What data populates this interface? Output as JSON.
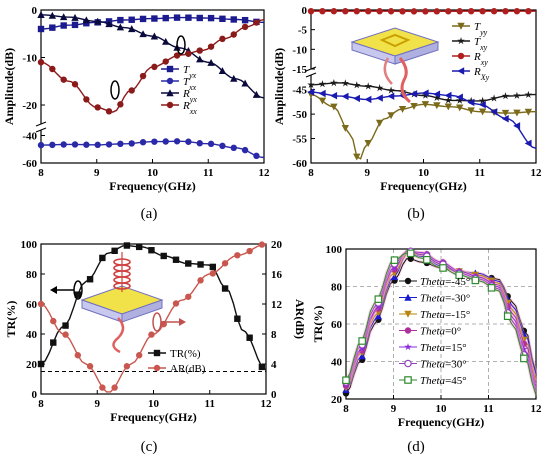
{
  "chart_data": [
    {
      "id": "a",
      "type": "line",
      "caption": "(a)",
      "xlabel": "Frequency(GHz)",
      "ylabel": "Amplitude(dB)",
      "xlim": [
        8,
        12
      ],
      "xticks": [
        "8",
        "9",
        "10",
        "11",
        "12"
      ],
      "yticks": [
        "0",
        "-10",
        "-20",
        "-40",
        "-60"
      ],
      "ylim_upper": [
        -24,
        0
      ],
      "ylim_lower": [
        -60,
        -36
      ],
      "axis_break": true,
      "series": [
        {
          "name": "Tyx",
          "name_base": "T",
          "name_sub": "yx",
          "color": "#1b1b8f",
          "marker": "square",
          "x": [
            8,
            8.5,
            9,
            9.5,
            10,
            10.5,
            11,
            11.5,
            12
          ],
          "y": [
            -4,
            -3.2,
            -2.6,
            -2.1,
            -1.8,
            -1.6,
            -1.7,
            -2,
            -2.6
          ]
        },
        {
          "name": "Txx",
          "name_base": "T",
          "name_sub": "xx",
          "color": "#2a2aa8",
          "marker": "circle",
          "x": [
            8,
            8.5,
            9,
            9.5,
            10,
            10.5,
            11,
            11.5,
            12
          ],
          "y": [
            -47,
            -46.5,
            -46.8,
            -46,
            -44.5,
            -44.2,
            -46,
            -49,
            -56
          ]
        },
        {
          "name": "Ryx",
          "name_base": "R",
          "name_sub": "yx",
          "color": "#0a0a3c",
          "marker": "triangle",
          "x": [
            8,
            8.5,
            9,
            9.5,
            10,
            10.5,
            11,
            11.5,
            12
          ],
          "y": [
            -1,
            -1.5,
            -2.4,
            -3.7,
            -5.5,
            -8,
            -11,
            -14.5,
            -18.5
          ]
        },
        {
          "name": "Rxx",
          "name_base": "R",
          "name_sub": "xx",
          "color": "#8b1a1a",
          "marker": "circle",
          "x": [
            8,
            8.5,
            9,
            9.3,
            9.6,
            10,
            10.5,
            10.9,
            11.3,
            11.7,
            12
          ],
          "y": [
            -11,
            -15,
            -20.5,
            -21.5,
            -17,
            -12,
            -9.5,
            -8.5,
            -6,
            -3.5,
            -2
          ]
        }
      ]
    },
    {
      "id": "b",
      "type": "line",
      "caption": "(b)",
      "xlabel": "Frequency(GHz)",
      "ylabel": "Amplitude(dB)",
      "xlim": [
        8,
        12
      ],
      "xticks": [
        "8",
        "9",
        "10",
        "11",
        "12"
      ],
      "yticks": [
        "0",
        "-5",
        "-10",
        "-15",
        "-45",
        "-50",
        "-55",
        "-60"
      ],
      "ylim_upper": [
        -15,
        0
      ],
      "ylim_lower": [
        -60,
        -42
      ],
      "axis_break": true,
      "series": [
        {
          "name": "Tyy",
          "name_base": "T",
          "name_sub": "yy",
          "color": "#7a6a1a",
          "marker": "triangle-down",
          "x": [
            8,
            8.4,
            8.7,
            8.85,
            9,
            9.3,
            9.6,
            10,
            10.5,
            11,
            11.5,
            12
          ],
          "y": [
            -46,
            -48.5,
            -54,
            -59.5,
            -56,
            -51,
            -49,
            -48,
            -48.5,
            -49.5,
            -49.8,
            -49.5
          ]
        },
        {
          "name": "Txy",
          "name_base": "T",
          "name_sub": "xy",
          "color": "#1a1a1a",
          "marker": "star",
          "x": [
            8,
            8.5,
            9,
            9.5,
            10,
            10.5,
            11,
            11.5,
            12
          ],
          "y": [
            -44,
            -43.6,
            -44.3,
            -45.2,
            -46.2,
            -47.2,
            -47.3,
            -46.3,
            -46
          ]
        },
        {
          "name": "Rxy",
          "name_base": "R",
          "name_sub": "xy",
          "color": "#b01f1f",
          "marker": "circle",
          "x": [
            8,
            9,
            10,
            11,
            12
          ],
          "y": [
            -0.3,
            -0.3,
            -0.35,
            -0.3,
            -0.3
          ]
        },
        {
          "name": "RXy",
          "name_base": "R",
          "name_sub": "Xy",
          "color": "#1a1ab0",
          "marker": "triangle-left",
          "x": [
            8,
            8.5,
            9,
            9.5,
            10,
            10.5,
            11,
            11.5,
            12
          ],
          "y": [
            -45.5,
            -46.3,
            -47,
            -46.3,
            -45.7,
            -46.2,
            -48,
            -51,
            -57
          ]
        }
      ]
    },
    {
      "id": "c",
      "type": "line",
      "caption": "(c)",
      "xlabel": "Frequency(GHz)",
      "ylabel": "TR(%)",
      "ylabel_right": "AR(dB)",
      "xlim": [
        8,
        12
      ],
      "ylim": [
        0,
        100
      ],
      "ylim_right": [
        0,
        20
      ],
      "xticks": [
        "8",
        "9",
        "10",
        "11",
        "12"
      ],
      "yticks": [
        "0",
        "20",
        "40",
        "60",
        "80",
        "100"
      ],
      "yticks_right": [
        "0",
        "4",
        "8",
        "12",
        "16",
        "20"
      ],
      "reference_line_right": 3,
      "series": [
        {
          "name": "TR(%)",
          "axis": "left",
          "color": "#111111",
          "marker": "square",
          "x": [
            8,
            8.4,
            8.8,
            9.2,
            9.5,
            9.8,
            10.2,
            10.6,
            11,
            11.3,
            11.6,
            12
          ],
          "y": [
            20,
            45,
            75,
            94,
            99,
            98,
            92,
            87,
            86,
            70,
            42,
            16
          ]
        },
        {
          "name": "AR(dB)",
          "axis": "right",
          "color": "#c9574f",
          "marker": "circle",
          "x": [
            8,
            8.4,
            8.8,
            9.2,
            9.6,
            10,
            10.5,
            11,
            11.5,
            12
          ],
          "y": [
            12,
            8,
            4,
            0.2,
            4,
            8,
            12.5,
            16,
            18.5,
            20
          ]
        }
      ]
    },
    {
      "id": "d",
      "type": "line",
      "caption": "(d)",
      "xlabel": "Frequency(GHz)",
      "ylabel": "TR(%)",
      "xlim": [
        8,
        12
      ],
      "ylim": [
        20,
        100
      ],
      "xticks": [
        "8",
        "9",
        "10",
        "11",
        "12"
      ],
      "yticks": [
        "20",
        "40",
        "60",
        "80",
        "100"
      ],
      "legend_prefix": "Theta",
      "series": [
        {
          "name": "Theta=-45°",
          "value": "=-45°",
          "color": "#111111",
          "marker": "circle-filled",
          "x": [
            8,
            8.3,
            8.6,
            9,
            9.3,
            9.6,
            10,
            10.4,
            10.8,
            11.2,
            11.5,
            11.8,
            12
          ],
          "y": [
            23,
            40,
            60,
            83,
            95,
            93,
            90,
            88,
            86,
            84,
            72,
            55,
            34
          ]
        },
        {
          "name": "Theta=-30°",
          "value": "=-30°",
          "color": "#1a1ad0",
          "marker": "triangle",
          "x": [
            8,
            8.3,
            8.6,
            9,
            9.3,
            9.6,
            10,
            10.4,
            10.8,
            11.2,
            11.5,
            11.8,
            12
          ],
          "y": [
            25,
            42,
            62,
            85,
            98,
            96,
            91,
            88,
            87,
            83,
            70,
            53,
            33
          ]
        },
        {
          "name": "Theta=-15°",
          "value": "=-15°",
          "color": "#b8860b",
          "marker": "triangle-down",
          "x": [
            8,
            8.3,
            8.6,
            9,
            9.3,
            9.6,
            10,
            10.4,
            10.8,
            11.2,
            11.5,
            11.8,
            12
          ],
          "y": [
            26,
            44,
            64,
            87,
            98,
            97,
            92,
            88,
            86,
            82,
            68,
            50,
            30
          ]
        },
        {
          "name": "Theta=0°",
          "value": "=0°",
          "color": "#b0309b",
          "marker": "circle-filled",
          "x": [
            8,
            8.3,
            8.6,
            9,
            9.3,
            9.6,
            10,
            10.4,
            10.8,
            11.2,
            11.5,
            11.8,
            12
          ],
          "y": [
            27,
            45,
            66,
            89,
            99,
            98,
            93,
            88,
            85,
            81,
            66,
            48,
            28
          ]
        },
        {
          "name": "Theta=15°",
          "value": "=15°",
          "color": "#8a2be2",
          "marker": "star",
          "x": [
            8,
            8.3,
            8.6,
            9,
            9.3,
            9.6,
            10,
            10.4,
            10.8,
            11.2,
            11.5,
            11.8,
            12
          ],
          "y": [
            28,
            46,
            67,
            90,
            99,
            98,
            93,
            88,
            85,
            80,
            64,
            45,
            26
          ]
        },
        {
          "name": "Theta=30°",
          "value": "=30°",
          "color": "#9040c0",
          "marker": "circle-open",
          "x": [
            8,
            8.3,
            8.6,
            9,
            9.3,
            9.6,
            10,
            10.4,
            10.8,
            11.2,
            11.5,
            11.8,
            12
          ],
          "y": [
            29,
            48,
            69,
            92,
            99,
            97,
            92,
            87,
            84,
            79,
            62,
            42,
            24
          ]
        },
        {
          "name": "Theta=45°",
          "value": "=45°",
          "color": "#2e8b2e",
          "marker": "square-open",
          "x": [
            8,
            8.3,
            8.6,
            9,
            9.3,
            9.6,
            10,
            10.4,
            10.8,
            11.2,
            11.5,
            11.8,
            12
          ],
          "y": [
            30,
            50,
            71,
            94,
            98,
            95,
            90,
            86,
            83,
            78,
            60,
            40,
            22
          ]
        }
      ]
    }
  ]
}
